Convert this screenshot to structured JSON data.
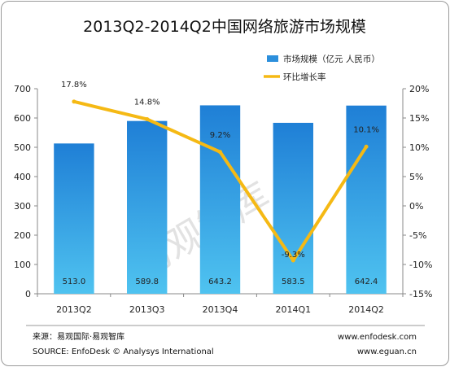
{
  "chart_data": {
    "type": "bar",
    "title": "2013Q2-2014Q2中国网络旅游市场规模",
    "categories": [
      "2013Q2",
      "2013Q3",
      "2013Q4",
      "2014Q1",
      "2014Q2"
    ],
    "series": [
      {
        "name": "市场规模（亿元 人民币）",
        "type": "bar",
        "axis": "left",
        "values": [
          513.0,
          589.8,
          643.2,
          583.5,
          642.4
        ],
        "labels": [
          "513.0",
          "589.8",
          "643.2",
          "583.5",
          "642.4"
        ],
        "color": "#2c8fdc"
      },
      {
        "name": "环比增长率",
        "type": "line",
        "axis": "right",
        "values": [
          17.8,
          14.8,
          9.2,
          -9.3,
          10.1
        ],
        "labels": [
          "17.8%",
          "14.8%",
          "9.2%",
          "-9.3%",
          "10.1%"
        ],
        "color": "#f5b914"
      }
    ],
    "ylim_left": [
      0,
      700
    ],
    "yticks_left": [
      "0",
      "100",
      "200",
      "300",
      "400",
      "500",
      "600",
      "700"
    ],
    "ylim_right": [
      -15,
      20
    ],
    "yticks_right": [
      "-15%",
      "-10%",
      "-5%",
      "0%",
      "5%",
      "10%",
      "15%",
      "20%"
    ],
    "grid": false,
    "legend_position": "top-right"
  },
  "watermark": "易观智库",
  "footer": {
    "source_cn": "来源：易观国际·易观智库",
    "source_en": "SOURCE: EnfoDesk © Analysys International",
    "url_1": "www.enfodesk.com",
    "url_2": "www.eguan.cn"
  },
  "colors": {
    "bar_top": "#1f7fd6",
    "bar_bottom": "#4fc3f0",
    "line": "#f5b914",
    "axis": "#888888"
  }
}
